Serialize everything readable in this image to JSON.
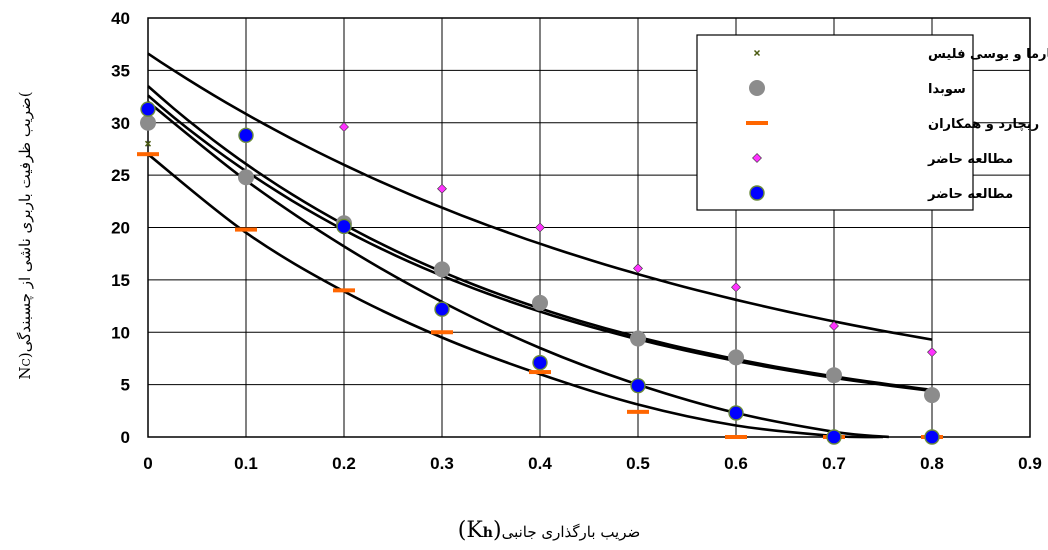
{
  "chart_data": {
    "type": "scatter",
    "title": "",
    "xlabel": "ضریب بارگذاری جانبی",
    "xlabel_symbol": "(K",
    "xlabel_sub": "h",
    "xlabel_close": ")",
    "ylabel": "ضریب ظرفیت باربری ناشی از چسبندگی",
    "ylabel_symbol": "(N",
    "ylabel_sub": "C",
    "ylabel_close": ")",
    "xlim": [
      0,
      0.9
    ],
    "ylim": [
      0,
      40
    ],
    "x_ticks": [
      "0",
      "0.1",
      "0.2",
      "0.3",
      "0.4",
      "0.5",
      "0.6",
      "0.7",
      "0.8",
      "0.9"
    ],
    "y_ticks": [
      "0",
      "5",
      "10",
      "15",
      "20",
      "25",
      "30",
      "35",
      "40"
    ],
    "grid": true,
    "legend_position": "top-right",
    "series": [
      {
        "name": "سارما و یوسی فلیس",
        "marker": "x-small",
        "color": "#4a5a10",
        "x": [
          0
        ],
        "y": [
          28
        ]
      },
      {
        "name": "سوبدا",
        "marker": "circle-large",
        "color": "#8c8c8c",
        "x": [
          0,
          0.1,
          0.2,
          0.3,
          0.4,
          0.5,
          0.6,
          0.7,
          0.8
        ],
        "y": [
          30,
          24.8,
          20.4,
          16,
          12.8,
          9.4,
          7.6,
          5.9,
          4
        ]
      },
      {
        "name": "ریچارد و همکاران",
        "marker": "dash",
        "color": "#ff6600",
        "x": [
          0,
          0.1,
          0.2,
          0.3,
          0.4,
          0.5,
          0.6,
          0.7,
          0.8
        ],
        "y": [
          27,
          19.8,
          14,
          10,
          6.2,
          2.4,
          0,
          0,
          0
        ]
      },
      {
        "name": "مطالعه حاضر",
        "marker": "diamond",
        "color": "#ff33ff",
        "x": [
          0.2,
          0.3,
          0.4,
          0.5,
          0.6,
          0.7,
          0.8
        ],
        "y": [
          29.6,
          23.7,
          20,
          16.1,
          14.3,
          10.6,
          8.1
        ]
      },
      {
        "name": "مطالعه حاضر",
        "marker": "circle-blue",
        "color": "#0000ff",
        "x": [
          0,
          0.1,
          0.2,
          0.3,
          0.4,
          0.5,
          0.6,
          0.7,
          0.8
        ],
        "y": [
          31.3,
          28.8,
          20.1,
          12.2,
          7.1,
          4.9,
          2.3,
          0,
          0
        ]
      }
    ],
    "trendlines": [
      {
        "x": [
          0,
          0.8
        ],
        "y": [
          36.6,
          9.3
        ],
        "curve": "exponential"
      },
      {
        "x": [
          0,
          0.8
        ],
        "y": [
          32.6,
          4.4
        ],
        "curve": "exponential"
      },
      {
        "x": [
          0,
          0.8
        ],
        "y": [
          33.5,
          4.5
        ],
        "curve": "exponential"
      },
      {
        "x": [
          0,
          0.1,
          0.2,
          0.3,
          0.4,
          0.5,
          0.6,
          0.7,
          0.756
        ],
        "y": [
          32,
          24.5,
          18.2,
          12.9,
          8.5,
          5,
          2.3,
          0.5,
          0
        ],
        "curve": "polynomial"
      },
      {
        "x": [
          0,
          0.1,
          0.2,
          0.3,
          0.4,
          0.5,
          0.6,
          0.7,
          0.75
        ],
        "y": [
          27,
          19.5,
          13.9,
          9.5,
          6,
          3.1,
          1.1,
          0.1,
          0
        ],
        "curve": "polynomial"
      }
    ]
  }
}
